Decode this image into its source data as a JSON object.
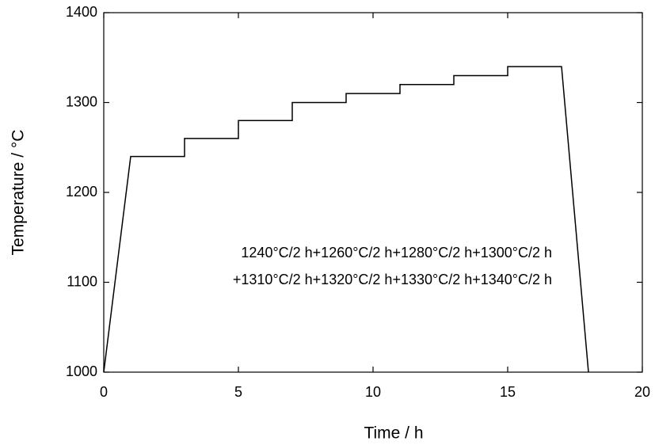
{
  "chart_data": {
    "type": "line",
    "x_label": "Time / h",
    "y_label": "Temperature / °C",
    "annotations": [
      "1240°C/2 h+1260°C/2 h+1280°C/2 h+1300°C/2 h",
      "+1310°C/2 h+1320°C/2 h+1330°C/2 h+1340°C/2 h"
    ],
    "x": [
      0,
      1,
      3,
      3,
      5,
      5,
      7,
      7,
      9,
      9,
      11,
      11,
      13,
      13,
      15,
      15,
      17,
      18
    ],
    "values": [
      1000,
      1240,
      1240,
      1260,
      1260,
      1280,
      1280,
      1300,
      1300,
      1310,
      1310,
      1320,
      1320,
      1330,
      1330,
      1340,
      1340,
      1000
    ],
    "color": "#000000",
    "xlim": [
      0,
      20
    ],
    "xticks": [
      0,
      5,
      10,
      15,
      20
    ],
    "ylim": [
      1000,
      1400
    ],
    "yticks": [
      1000,
      1100,
      1200,
      1300,
      1400
    ],
    "grid": false
  }
}
